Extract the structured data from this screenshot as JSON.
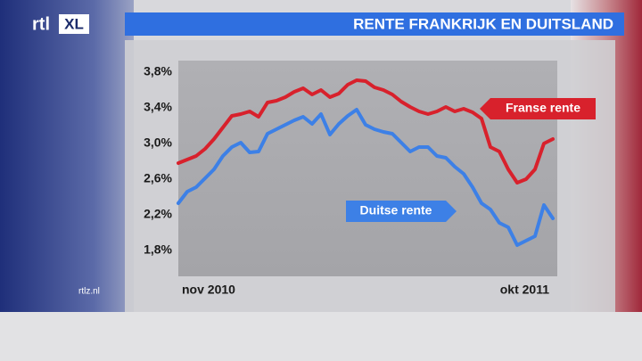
{
  "logo": {
    "brand": "rtl",
    "badge": "XL"
  },
  "website": "rtlz.nl",
  "chart_data": {
    "type": "line",
    "title": "RENTE FRANKRIJK EN DUITSLAND",
    "categories": [
      "nov 2010",
      null,
      null,
      null,
      null,
      null,
      null,
      null,
      null,
      null,
      null,
      null,
      null,
      null,
      null,
      null,
      null,
      null,
      null,
      null,
      null,
      null,
      null,
      null,
      null,
      null,
      null,
      null,
      null,
      null,
      null,
      null,
      null,
      null,
      null,
      null,
      null,
      null,
      null,
      null,
      null,
      null,
      "okt 2011"
    ],
    "series": [
      {
        "name": "Franse rente",
        "color": "#d8212c",
        "values": [
          2.78,
          2.82,
          2.86,
          2.94,
          3.05,
          3.18,
          3.31,
          3.33,
          3.36,
          3.3,
          3.46,
          3.48,
          3.52,
          3.58,
          3.62,
          3.55,
          3.6,
          3.52,
          3.56,
          3.66,
          3.71,
          3.7,
          3.63,
          3.6,
          3.55,
          3.47,
          3.41,
          3.36,
          3.33,
          3.36,
          3.41,
          3.36,
          3.39,
          3.35,
          3.28,
          2.96,
          2.91,
          2.71,
          2.56,
          2.6,
          2.71,
          3.0,
          3.05
        ]
      },
      {
        "name": "Duitse rente",
        "color": "#3d80e6",
        "values": [
          2.33,
          2.46,
          2.51,
          2.61,
          2.71,
          2.86,
          2.96,
          3.01,
          2.9,
          2.91,
          3.11,
          3.16,
          3.21,
          3.26,
          3.3,
          3.22,
          3.33,
          3.1,
          3.22,
          3.31,
          3.38,
          3.21,
          3.16,
          3.13,
          3.11,
          3.01,
          2.91,
          2.96,
          2.96,
          2.86,
          2.84,
          2.74,
          2.66,
          2.51,
          2.33,
          2.26,
          2.11,
          2.06,
          1.86,
          1.91,
          1.96,
          2.31,
          2.16
        ]
      }
    ],
    "ylim": [
      1.51,
      3.93
    ],
    "yticks": [
      {
        "value": 1.8,
        "label": "1,8%"
      },
      {
        "value": 2.2,
        "label": "2,2%"
      },
      {
        "value": 2.6,
        "label": "2,6%"
      },
      {
        "value": 3.0,
        "label": "3,0%"
      },
      {
        "value": 3.4,
        "label": "3,4%"
      },
      {
        "value": 3.8,
        "label": "3,8%"
      }
    ],
    "grid": false
  }
}
